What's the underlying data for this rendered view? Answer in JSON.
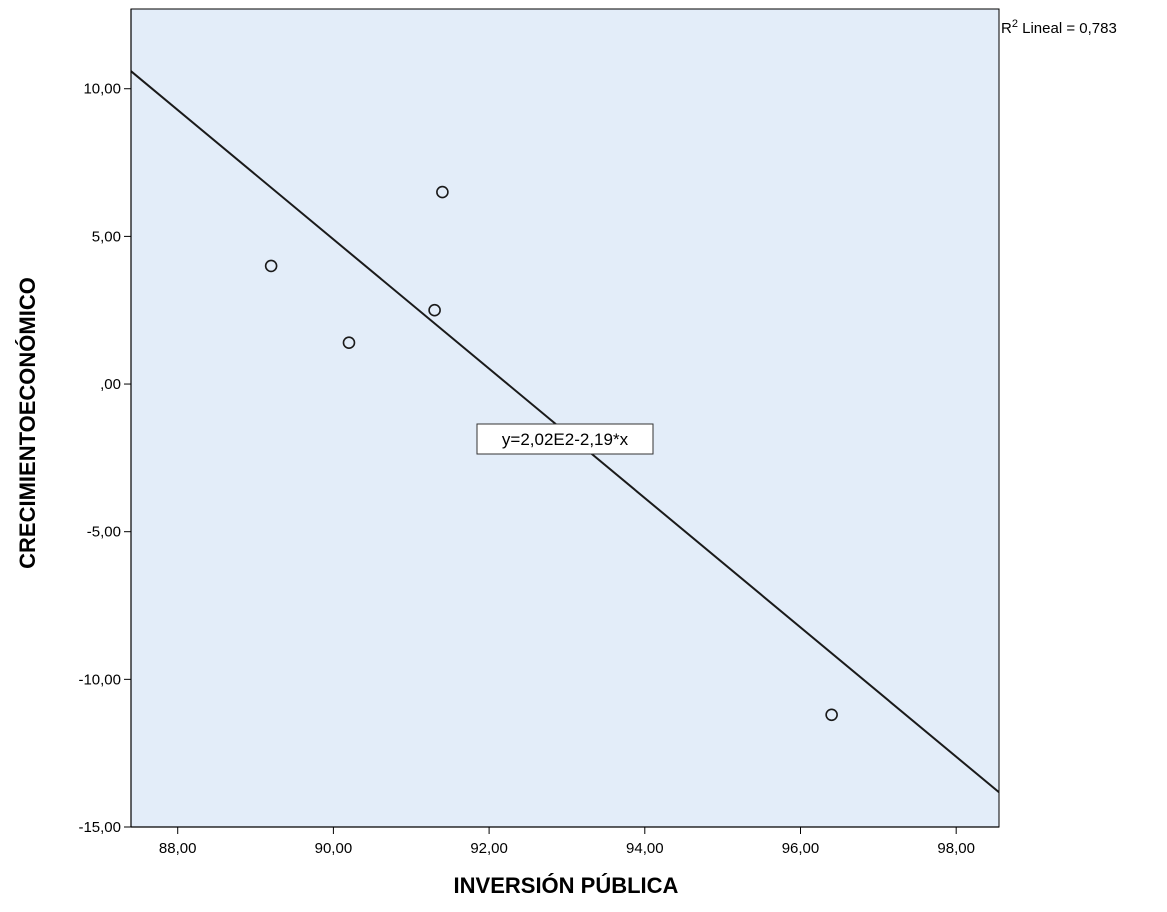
{
  "chart_data": {
    "type": "scatter",
    "title": "",
    "xlabel": "INVERSIÓN PÚBLICA",
    "ylabel": "CRECIMIENTOECONÓMICO",
    "xlim": [
      87.4,
      98.55
    ],
    "ylim": [
      -15,
      12.7
    ],
    "x_ticks": [
      88,
      90,
      92,
      94,
      96,
      98
    ],
    "x_tick_labels": [
      "88,00",
      "90,00",
      "92,00",
      "94,00",
      "96,00",
      "98,00"
    ],
    "y_ticks": [
      10,
      5,
      0,
      -5,
      -10,
      -15
    ],
    "y_tick_labels": [
      "10,00",
      "5,00",
      ",00",
      "-5,00",
      "-10,00",
      "-15,00"
    ],
    "points": [
      {
        "x": 89.2,
        "y": 4.0
      },
      {
        "x": 90.2,
        "y": 1.4
      },
      {
        "x": 91.3,
        "y": 2.5
      },
      {
        "x": 91.4,
        "y": 6.5
      },
      {
        "x": 96.4,
        "y": -11.2
      }
    ],
    "fit_line": {
      "intercept": 202,
      "slope": -2.19
    },
    "equation_label": "y=2,02E2-2,19*x",
    "r2_prefix": "R",
    "r2_superscript": "2",
    "r2_text": " Lineal = 0,783",
    "grid": false,
    "colors": {
      "plot_background": "#e3edf9",
      "axis": "#000000",
      "line": "#1a1a1a",
      "marker_stroke": "#1a1a1a"
    }
  }
}
